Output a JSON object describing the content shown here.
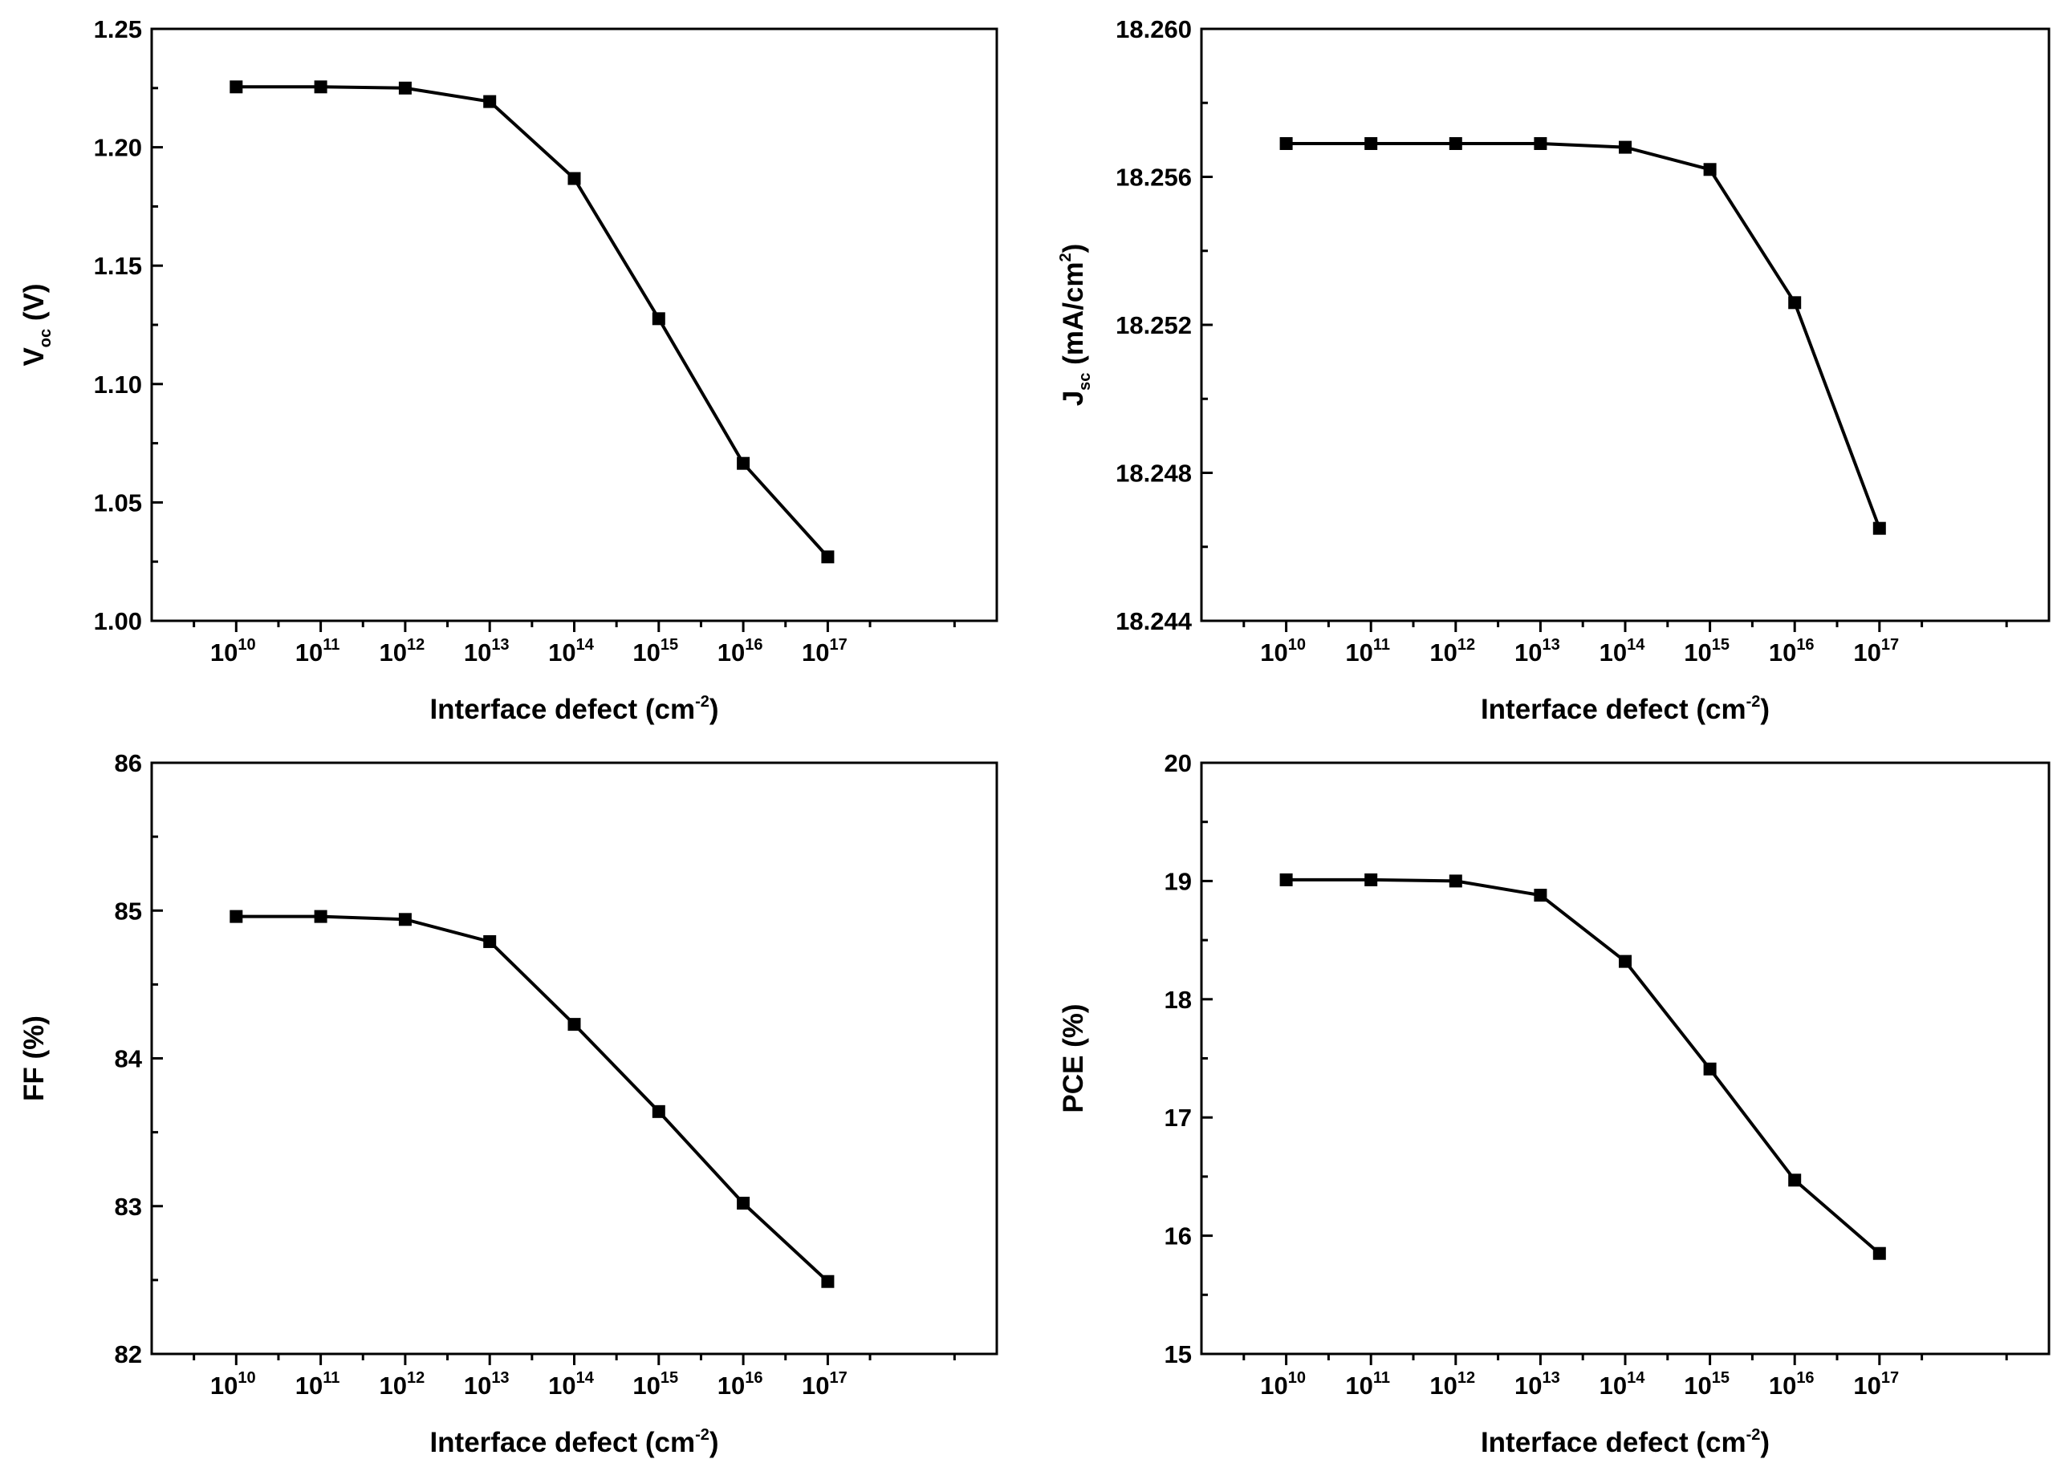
{
  "chart_data": [
    {
      "id": "voc",
      "type": "line",
      "marker": "square",
      "categories": [
        "10",
        "11",
        "12",
        "13",
        "14",
        "15",
        "16",
        "17"
      ],
      "x_base": "10",
      "values": [
        1.2255,
        1.2255,
        1.225,
        1.2193,
        1.1868,
        1.1276,
        1.0665,
        1.027
      ],
      "ylim": [
        1.0,
        1.25
      ],
      "yticks": [
        "1.00",
        "1.05",
        "1.10",
        "1.15",
        "1.20",
        "1.25"
      ],
      "xlabel": {
        "text": "Interface defect (cm",
        "sup": "-2",
        "close": ")"
      },
      "ylabel": {
        "main": "V",
        "sub": "oc",
        "rest": " (V)"
      }
    },
    {
      "id": "jsc",
      "type": "line",
      "marker": "square",
      "categories": [
        "10",
        "11",
        "12",
        "13",
        "14",
        "15",
        "16",
        "17"
      ],
      "x_base": "10",
      "values": [
        18.2569,
        18.2569,
        18.2569,
        18.2569,
        18.2568,
        18.2562,
        18.2526,
        18.2465
      ],
      "ylim": [
        18.244,
        18.26
      ],
      "yticks": [
        "18.244",
        "18.248",
        "18.252",
        "18.256",
        "18.260"
      ],
      "xlabel": {
        "text": "Interface defect (cm",
        "sup": "-2",
        "close": ")"
      },
      "ylabel": {
        "main": "J",
        "sub": "sc",
        "rest": " (mA/cm",
        "sup": "2",
        "close": ")"
      }
    },
    {
      "id": "ff",
      "type": "line",
      "marker": "square",
      "categories": [
        "10",
        "11",
        "12",
        "13",
        "14",
        "15",
        "16",
        "17"
      ],
      "x_base": "10",
      "values": [
        84.96,
        84.96,
        84.94,
        84.79,
        84.23,
        83.64,
        83.02,
        82.49
      ],
      "ylim": [
        82,
        86
      ],
      "yticks": [
        "82",
        "83",
        "84",
        "85",
        "86"
      ],
      "xlabel": {
        "text": "Interface defect (cm",
        "sup": "-2",
        "close": ")"
      },
      "ylabel": {
        "main": "FF (%)"
      }
    },
    {
      "id": "pce",
      "type": "line",
      "marker": "square",
      "categories": [
        "10",
        "11",
        "12",
        "13",
        "14",
        "15",
        "16",
        "17"
      ],
      "x_base": "10",
      "values": [
        19.01,
        19.01,
        19.0,
        18.88,
        18.32,
        17.41,
        16.47,
        15.85
      ],
      "ylim": [
        15,
        20
      ],
      "yticks": [
        "15",
        "16",
        "17",
        "18",
        "19",
        "20"
      ],
      "xlabel": {
        "text": "Interface defect (cm",
        "sup": "-2",
        "close": ")"
      },
      "ylabel": {
        "main": "PCE (%)"
      }
    }
  ],
  "colors": {
    "line": "#000000",
    "marker": "#000000",
    "frame": "#000000",
    "background": "#ffffff"
  }
}
